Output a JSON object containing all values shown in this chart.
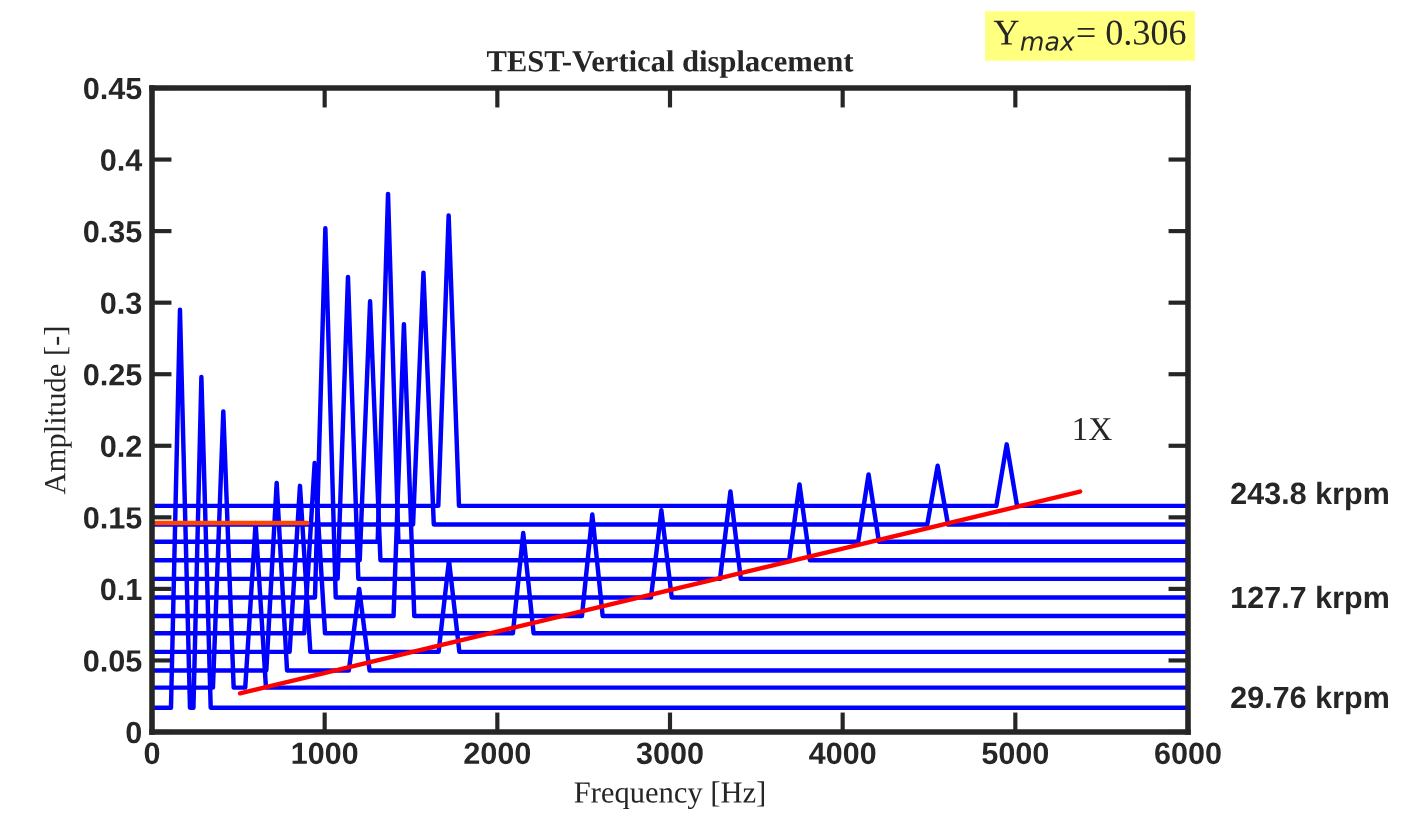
{
  "chart_data": {
    "type": "line",
    "title": "TEST-Vertical displacement",
    "xlabel": "Frequency [Hz]",
    "ylabel": "Amplitude [-]",
    "xlim": [
      0,
      6000
    ],
    "xticks": [
      0,
      1000,
      2000,
      3000,
      4000,
      5000,
      6000
    ],
    "ylim": [
      0,
      0.45
    ],
    "yticks": [
      0,
      0.05,
      0.1,
      0.15,
      0.2,
      0.25,
      0.3,
      0.35,
      0.4,
      0.45
    ],
    "grid": false,
    "marker": "none",
    "line_style": "solid",
    "annotations": [
      "Y$_{max}$= 0.306",
      "1X",
      "243.8 krpm",
      "127.7 krpm",
      "29.76 krpm"
    ],
    "series": [
      {
        "color": "#0000ff",
        "x": [
          0,
          1658,
          1718,
          1778,
          4890,
          4950,
          5010,
          6000
        ],
        "values": [
          0.158,
          0.158,
          0.361,
          0.158,
          0.158,
          0.201,
          0.158,
          0.158
        ]
      },
      {
        "color": "#0000ff",
        "x": [
          0,
          1512,
          1572,
          1632,
          4490,
          4550,
          4610,
          6000
        ],
        "values": [
          0.145,
          0.145,
          0.321,
          0.145,
          0.145,
          0.186,
          0.145,
          0.145
        ]
      },
      {
        "color": "#0000ff",
        "x": [
          0,
          1307,
          1367,
          1427,
          4090,
          4150,
          4210,
          6000
        ],
        "values": [
          0.133,
          0.133,
          0.376,
          0.133,
          0.133,
          0.18,
          0.133,
          0.133
        ]
      },
      {
        "color": "#0000ff",
        "x": [
          0,
          1203,
          1263,
          1323,
          3690,
          3750,
          3810,
          6000
        ],
        "values": [
          0.12,
          0.12,
          0.301,
          0.12,
          0.12,
          0.173,
          0.12,
          0.12
        ]
      },
      {
        "color": "#0000ff",
        "x": [
          0,
          1075,
          1135,
          1195,
          3290,
          3350,
          3410,
          6000
        ],
        "values": [
          0.107,
          0.107,
          0.318,
          0.107,
          0.107,
          0.168,
          0.107,
          0.107
        ]
      },
      {
        "color": "#0000ff",
        "x": [
          0,
          944,
          1004,
          1064,
          2890,
          2950,
          3010,
          6000
        ],
        "values": [
          0.094,
          0.094,
          0.352,
          0.094,
          0.094,
          0.155,
          0.094,
          0.094
        ]
      },
      {
        "color": "#0000ff",
        "x": [
          0,
          1399,
          1459,
          1519,
          2490,
          2550,
          2610,
          6000
        ],
        "values": [
          0.081,
          0.081,
          0.285,
          0.081,
          0.081,
          0.152,
          0.081,
          0.081
        ]
      },
      {
        "color": "#0000ff",
        "x": [
          0,
          882,
          942,
          1002,
          2090,
          2150,
          2210,
          6000
        ],
        "values": [
          0.069,
          0.069,
          0.188,
          0.069,
          0.069,
          0.139,
          0.069,
          0.069
        ]
      },
      {
        "color": "#0000ff",
        "x": [
          0,
          797,
          857,
          917,
          1660,
          1720,
          1780,
          6000
        ],
        "values": [
          0.056,
          0.056,
          0.172,
          0.056,
          0.056,
          0.12,
          0.056,
          0.056
        ]
      },
      {
        "color": "#0000ff",
        "x": [
          0,
          662,
          722,
          782,
          1140,
          1200,
          1260,
          6000
        ],
        "values": [
          0.043,
          0.043,
          0.174,
          0.043,
          0.043,
          0.1,
          0.043,
          0.043
        ]
      },
      {
        "color": "#0000ff",
        "x": [
          0,
          353,
          413,
          473,
          540,
          600,
          660,
          6000
        ],
        "values": [
          0.031,
          0.031,
          0.224,
          0.031,
          0.031,
          0.146,
          0.031,
          0.031
        ]
      },
      {
        "color": "#0000ff",
        "x": [
          0,
          110,
          162,
          220,
          240,
          286,
          340,
          6000
        ],
        "values": [
          0.017,
          0.017,
          0.295,
          0.017,
          0.017,
          0.248,
          0.017,
          0.017
        ]
      },
      {
        "color": "#ff0000",
        "x": [
          510,
          5375
        ],
        "values": [
          0.027,
          0.168
        ]
      },
      {
        "color": "#ff4500",
        "x": [
          0,
          900
        ],
        "values": [
          0.146,
          0.146
        ]
      }
    ]
  }
}
